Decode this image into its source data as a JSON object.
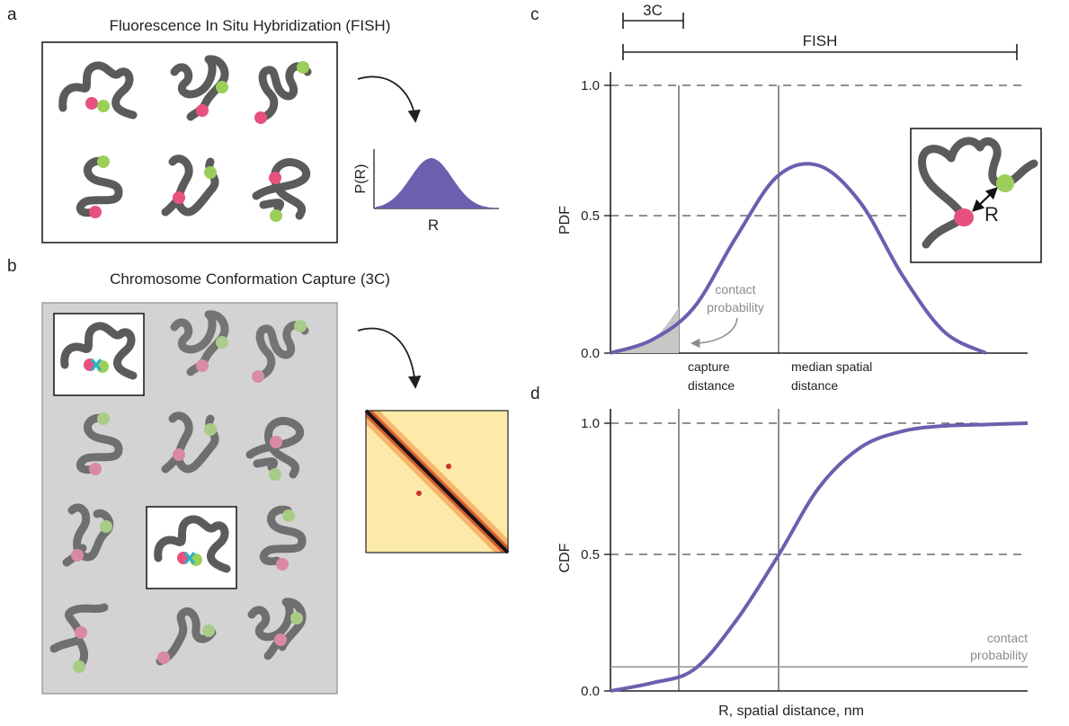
{
  "panels": {
    "a": {
      "letter": "a",
      "title": "Fluorescence In Situ Hybridization (FISH)",
      "mini_plot": {
        "ylabel": "P(R)",
        "xlabel": "R"
      }
    },
    "b": {
      "letter": "b",
      "title": "Chromosome Conformation Capture (3C)"
    },
    "c": {
      "letter": "c",
      "scale_3c": "3C",
      "scale_fish": "FISH",
      "ylabel": "PDF",
      "ticks": [
        "1.0",
        "0.5",
        "0.0"
      ],
      "annotation_contact": [
        "contact",
        "probability"
      ],
      "label_capture": [
        "capture",
        "distance"
      ],
      "label_median": [
        "median spatial",
        "distance"
      ],
      "inset_label": "R"
    },
    "d": {
      "letter": "d",
      "ylabel": "CDF",
      "ticks": [
        "1.0",
        "0.5",
        "0.0"
      ],
      "annotation_contact": [
        "contact",
        "probability"
      ],
      "xlabel": "R, spatial distance, nm"
    }
  },
  "colors": {
    "curve": "#6b5fae",
    "chain": "#5b5b5b",
    "pink": "#e8517d",
    "green": "#9bcf5a",
    "teal": "#2ab3c9",
    "panel_b_bg": "#d3d3d3",
    "heatmap_diag": "#141414"
  },
  "chart_data": [
    {
      "type": "line",
      "panel": "c",
      "ylabel": "PDF",
      "ylim": [
        0,
        1.0
      ],
      "yticks": [
        0.0,
        0.5,
        1.0
      ],
      "series": [
        {
          "x": [
            0,
            0.1,
            0.2,
            0.3,
            0.4,
            0.5,
            0.6,
            0.7,
            0.8,
            0.9
          ],
          "values": [
            0.0,
            0.05,
            0.17,
            0.43,
            0.66,
            0.7,
            0.56,
            0.29,
            0.08,
            0.0
          ]
        }
      ],
      "vertical_markers": [
        "capture distance",
        "median spatial distance"
      ],
      "grid": "dashed at 0.5 and 1.0"
    },
    {
      "type": "line",
      "panel": "d",
      "ylabel": "CDF",
      "xlabel": "R, spatial distance, nm",
      "ylim": [
        0,
        1.0
      ],
      "yticks": [
        0.0,
        0.5,
        1.0
      ],
      "series": [
        {
          "x": [
            0,
            0.1,
            0.2,
            0.3,
            0.4,
            0.5,
            0.6,
            0.7,
            0.8,
            0.9,
            1.0
          ],
          "values": [
            0.0,
            0.03,
            0.08,
            0.26,
            0.5,
            0.76,
            0.91,
            0.97,
            0.99,
            0.995,
            1.0
          ]
        }
      ],
      "horizontal_marker": {
        "label": "contact probability",
        "value": 0.09
      },
      "grid": "dashed at 0.5 and 1.0"
    }
  ]
}
